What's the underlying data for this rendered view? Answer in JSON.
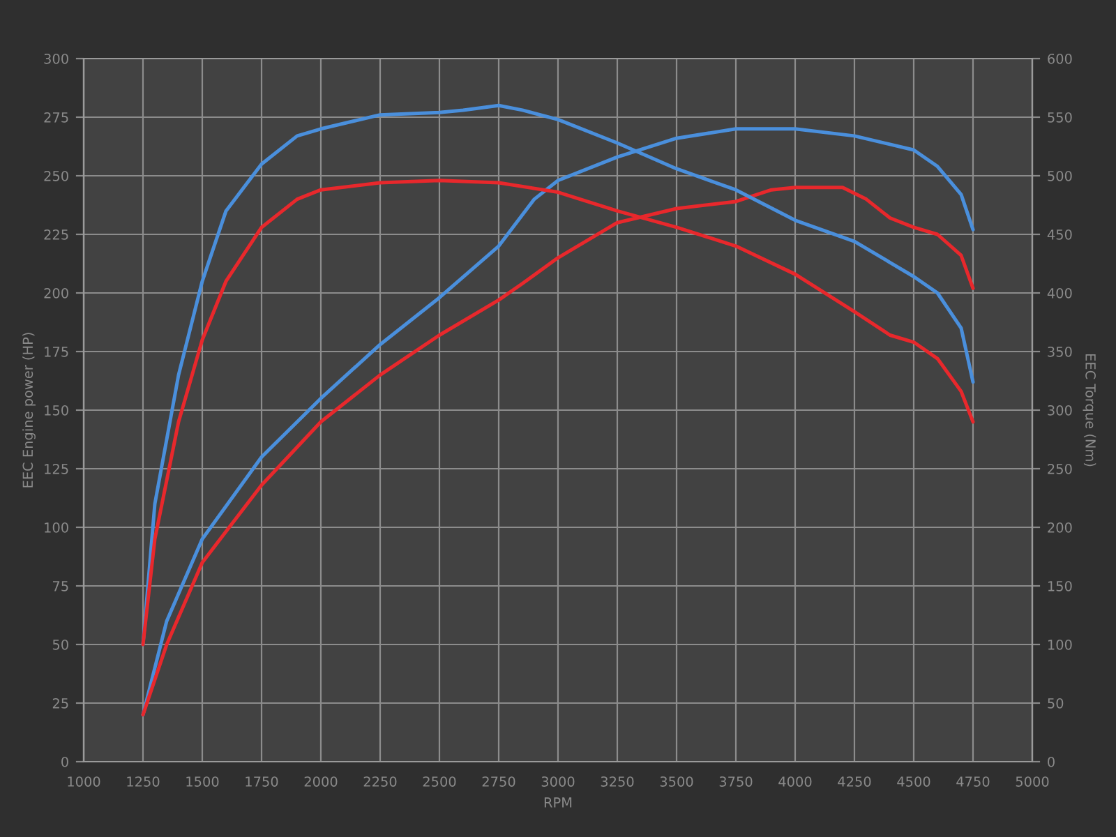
{
  "chart_data": {
    "type": "line",
    "xlabel": "RPM",
    "ylabel": "EEC Engine power (HP)",
    "y2label": "EEC Torque (Nm)",
    "xlim": [
      1000,
      5000
    ],
    "xticks": [
      1000,
      1250,
      1500,
      1750,
      2000,
      2250,
      2500,
      2750,
      3000,
      3250,
      3500,
      3750,
      4000,
      4250,
      4500,
      4750,
      5000
    ],
    "ylim": [
      0,
      300
    ],
    "yticks": [
      0,
      25,
      50,
      75,
      100,
      125,
      150,
      175,
      200,
      225,
      250,
      275,
      300
    ],
    "y2lim": [
      0,
      600
    ],
    "y2ticks": [
      0,
      50,
      100,
      150,
      200,
      250,
      300,
      350,
      400,
      450,
      500,
      550,
      600
    ],
    "grid": true,
    "series": [
      {
        "color": "#4a8fdc",
        "axis": "y2",
        "x": [
          1250,
          1300,
          1400,
          1500,
          1600,
          1750,
          1900,
          2000,
          2250,
          2500,
          2600,
          2750,
          2850,
          3000,
          3250,
          3500,
          3750,
          4000,
          4250,
          4400,
          4500,
          4600,
          4700,
          4750
        ],
        "values": [
          100,
          220,
          330,
          410,
          470,
          510,
          534,
          540,
          552,
          554,
          556,
          560,
          556,
          548,
          528,
          506,
          488,
          462,
          444,
          426,
          414,
          400,
          370,
          324
        ]
      },
      {
        "color": "#e8282c",
        "axis": "y2",
        "x": [
          1250,
          1300,
          1400,
          1500,
          1600,
          1750,
          1900,
          2000,
          2250,
          2500,
          2750,
          3000,
          3250,
          3500,
          3750,
          4000,
          4250,
          4400,
          4500,
          4600,
          4700,
          4750
        ],
        "values": [
          100,
          190,
          290,
          360,
          410,
          456,
          480,
          488,
          494,
          496,
          494,
          486,
          470,
          456,
          440,
          416,
          384,
          364,
          358,
          344,
          316,
          290
        ]
      },
      {
        "color": "#4a8fdc",
        "axis": "y",
        "x": [
          1250,
          1350,
          1500,
          1750,
          2000,
          2250,
          2500,
          2750,
          2900,
          3000,
          3250,
          3500,
          3750,
          4000,
          4250,
          4500,
          4600,
          4700,
          4750
        ],
        "values": [
          20,
          60,
          95,
          130,
          155,
          178,
          198,
          220,
          240,
          248,
          258,
          266,
          270,
          270,
          267,
          261,
          254,
          242,
          227
        ]
      },
      {
        "color": "#e8282c",
        "axis": "y",
        "x": [
          1250,
          1350,
          1500,
          1750,
          2000,
          2250,
          2500,
          2750,
          2850,
          3000,
          3250,
          3500,
          3750,
          3900,
          4000,
          4200,
          4300,
          4400,
          4500,
          4600,
          4700,
          4750
        ],
        "values": [
          20,
          50,
          85,
          118,
          145,
          165,
          182,
          197,
          204,
          215,
          230,
          236,
          239,
          244,
          245,
          245,
          240,
          232,
          228,
          225,
          216,
          202
        ]
      }
    ]
  }
}
